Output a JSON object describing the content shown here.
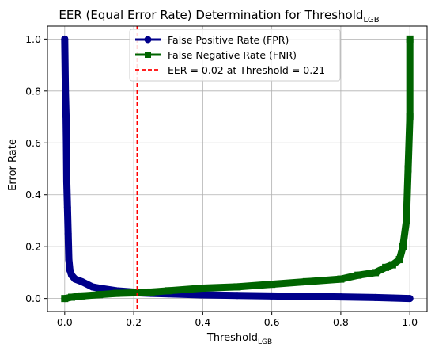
{
  "chart_data": {
    "type": "line",
    "title_main": "EER (Equal Error Rate) Determination for Threshold",
    "title_sub": "LGB",
    "xlabel_main": "Threshold",
    "xlabel_sub": "LGB",
    "ylabel": "Error Rate",
    "xlim": [
      -0.05,
      1.05
    ],
    "ylim": [
      -0.05,
      1.05
    ],
    "xticks": [
      0.0,
      0.2,
      0.4,
      0.6,
      0.8,
      1.0
    ],
    "xtick_labels": [
      "0.0",
      "0.2",
      "0.4",
      "0.6",
      "0.8",
      "1.0"
    ],
    "yticks": [
      0.0,
      0.2,
      0.4,
      0.6,
      0.8,
      1.0
    ],
    "ytick_labels": [
      "0.0",
      "0.2",
      "0.4",
      "0.6",
      "0.8",
      "1.0"
    ],
    "grid": true,
    "legend_position": "top-center",
    "series": [
      {
        "name": "False Positive Rate (FPR)",
        "color": "#00008b",
        "marker": "circle",
        "x": [
          0.0,
          0.002,
          0.004,
          0.005,
          0.006,
          0.008,
          0.01,
          0.012,
          0.015,
          0.02,
          0.03,
          0.05,
          0.08,
          0.1,
          0.15,
          0.2,
          0.21,
          0.25,
          0.3,
          0.4,
          0.5,
          0.6,
          0.7,
          0.8,
          0.9,
          0.95,
          1.0
        ],
        "y": [
          1.0,
          0.8,
          0.7,
          0.6,
          0.45,
          0.35,
          0.25,
          0.15,
          0.11,
          0.09,
          0.075,
          0.065,
          0.045,
          0.04,
          0.03,
          0.025,
          0.022,
          0.02,
          0.018,
          0.014,
          0.012,
          0.01,
          0.008,
          0.006,
          0.004,
          0.002,
          0.0
        ]
      },
      {
        "name": "False Negative Rate (FNR)",
        "color": "#006400",
        "marker": "square",
        "x": [
          0.0,
          0.02,
          0.05,
          0.1,
          0.15,
          0.2,
          0.25,
          0.3,
          0.4,
          0.5,
          0.6,
          0.7,
          0.8,
          0.85,
          0.9,
          0.93,
          0.95,
          0.97,
          0.98,
          0.99,
          0.995,
          1.0,
          1.0
        ],
        "y": [
          0.0,
          0.005,
          0.01,
          0.015,
          0.02,
          0.022,
          0.025,
          0.03,
          0.04,
          0.045,
          0.055,
          0.065,
          0.075,
          0.09,
          0.1,
          0.12,
          0.13,
          0.15,
          0.2,
          0.3,
          0.5,
          0.7,
          1.0
        ]
      }
    ],
    "eer_line": {
      "label": "EER = 0.02 at Threshold = 0.21",
      "x": 0.21,
      "eer": 0.02,
      "color": "#ff0000"
    }
  }
}
